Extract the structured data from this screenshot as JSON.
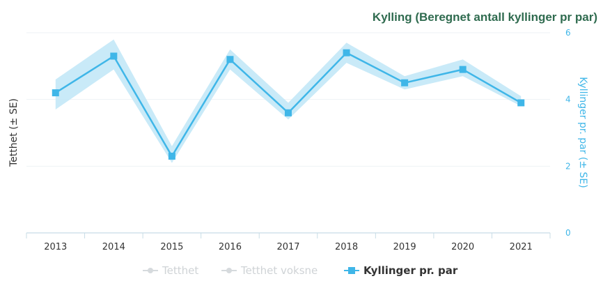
{
  "chart_data": {
    "type": "line",
    "title": "Kylling (Beregnet antall kyllinger pr par)",
    "categories": [
      "2013",
      "2014",
      "2015",
      "2016",
      "2017",
      "2018",
      "2019",
      "2020",
      "2021"
    ],
    "y_left_label": "Tetthet (± SE)",
    "y_right_label": "Kyllinger pr. par (± SE)",
    "y_right_ticks": [
      "0",
      "2",
      "4",
      "6"
    ],
    "ylim": [
      0,
      6
    ],
    "grid": true,
    "legend_position": "bottom",
    "legend": [
      {
        "label": "Tetthet",
        "active": false
      },
      {
        "label": "Tetthet voksne",
        "active": false
      },
      {
        "label": "Kyllinger pr. par",
        "active": true
      }
    ],
    "series": [
      {
        "name": "Kyllinger pr. par",
        "values": [
          4.2,
          5.3,
          2.3,
          5.2,
          3.6,
          5.4,
          4.5,
          4.9,
          3.9
        ],
        "se_lower": [
          3.7,
          4.9,
          2.1,
          4.9,
          3.4,
          5.1,
          4.3,
          4.7,
          3.8
        ],
        "se_upper": [
          4.6,
          5.8,
          2.6,
          5.5,
          3.9,
          5.7,
          4.7,
          5.2,
          4.1
        ],
        "color": "#3fb6e8",
        "band_color": "#bfe6f7"
      }
    ]
  }
}
